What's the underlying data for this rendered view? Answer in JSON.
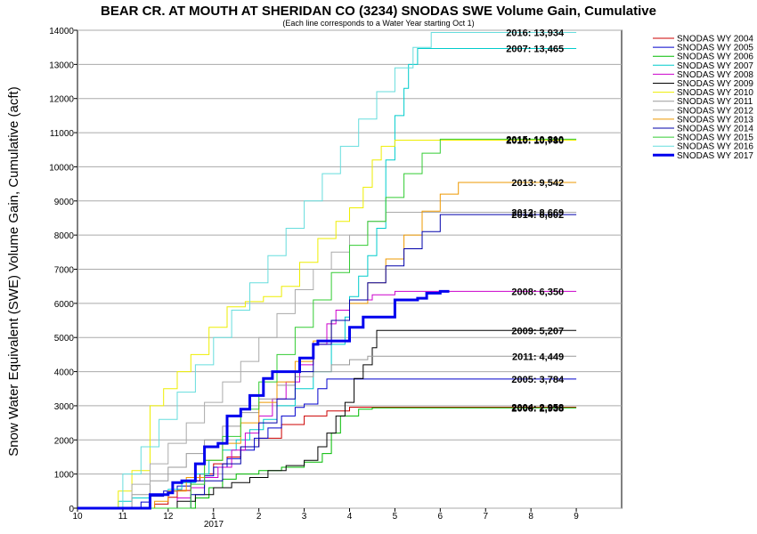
{
  "chart_data": {
    "type": "line",
    "title": "BEAR CR. AT MOUTH AT SHERIDAN CO (3234) SNODAS SWE Volume Gain, Cumulative",
    "subtitle": "(Each line corresponds to a Water Year starting Oct 1)",
    "ylabel": "Snow Water Equivalent (SWE) Volume Gain, Cumulative (acft)",
    "xlabel": "",
    "x_tick_labels": [
      "10",
      "11",
      "12",
      "1",
      "2",
      "3",
      "4",
      "5",
      "6",
      "7",
      "8",
      "9"
    ],
    "x_year_label": "2017",
    "xlim": [
      0,
      12
    ],
    "ylim": [
      0,
      14000
    ],
    "y_ticks": [
      0,
      1000,
      2000,
      3000,
      4000,
      5000,
      6000,
      7000,
      8000,
      9000,
      10000,
      11000,
      12000,
      13000,
      14000
    ],
    "grid": true,
    "legend_position": "right",
    "series": [
      {
        "name": "SNODAS WY 2004",
        "color": "#cc0000",
        "width": 1,
        "end_label": "2004: 2,958",
        "points": [
          [
            0,
            0
          ],
          [
            1.5,
            0
          ],
          [
            1.7,
            120
          ],
          [
            2.0,
            320
          ],
          [
            2.2,
            520
          ],
          [
            2.5,
            800
          ],
          [
            2.7,
            1000
          ],
          [
            3.0,
            1300
          ],
          [
            3.3,
            1500
          ],
          [
            3.6,
            1800
          ],
          [
            4.0,
            2050
          ],
          [
            4.5,
            2450
          ],
          [
            5.0,
            2700
          ],
          [
            5.5,
            2850
          ],
          [
            6.0,
            2958
          ],
          [
            11.0,
            2958
          ]
        ]
      },
      {
        "name": "SNODAS WY 2005",
        "color": "#0000cc",
        "width": 1,
        "end_label": "2005: 3,784",
        "points": [
          [
            0,
            0
          ],
          [
            1.3,
            0
          ],
          [
            1.4,
            180
          ],
          [
            1.6,
            350
          ],
          [
            1.9,
            500
          ],
          [
            2.2,
            650
          ],
          [
            2.5,
            800
          ],
          [
            2.8,
            950
          ],
          [
            3.0,
            1200
          ],
          [
            3.3,
            1450
          ],
          [
            3.6,
            1700
          ],
          [
            3.9,
            2050
          ],
          [
            4.2,
            2350
          ],
          [
            4.5,
            2700
          ],
          [
            4.8,
            2950
          ],
          [
            5.0,
            3050
          ],
          [
            5.3,
            3500
          ],
          [
            5.5,
            3784
          ],
          [
            11.0,
            3784
          ]
        ]
      },
      {
        "name": "SNODAS WY 2006",
        "color": "#00bb00",
        "width": 1,
        "end_label": "2006: 2,938",
        "points": [
          [
            0,
            0
          ],
          [
            2.3,
            0
          ],
          [
            2.6,
            300
          ],
          [
            2.9,
            600
          ],
          [
            3.2,
            850
          ],
          [
            3.5,
            1000
          ],
          [
            4.0,
            1100
          ],
          [
            4.5,
            1200
          ],
          [
            5.0,
            1350
          ],
          [
            5.4,
            1600
          ],
          [
            5.6,
            2200
          ],
          [
            5.8,
            2700
          ],
          [
            6.2,
            2900
          ],
          [
            6.5,
            2938
          ],
          [
            11.0,
            2938
          ]
        ]
      },
      {
        "name": "SNODAS WY 2007",
        "color": "#00cccc",
        "width": 1,
        "end_label": "2007: 13,465",
        "points": [
          [
            0,
            0
          ],
          [
            0.8,
            0
          ],
          [
            0.9,
            200
          ],
          [
            1.2,
            300
          ],
          [
            1.6,
            400
          ],
          [
            2.0,
            550
          ],
          [
            2.3,
            750
          ],
          [
            2.6,
            1000
          ],
          [
            2.9,
            1400
          ],
          [
            3.2,
            1700
          ],
          [
            3.5,
            2000
          ],
          [
            3.8,
            2300
          ],
          [
            4.1,
            2600
          ],
          [
            4.4,
            3000
          ],
          [
            4.8,
            3500
          ],
          [
            5.2,
            4000
          ],
          [
            5.6,
            4800
          ],
          [
            5.9,
            5600
          ],
          [
            6.0,
            6200
          ],
          [
            6.2,
            6800
          ],
          [
            6.4,
            7400
          ],
          [
            6.6,
            8200
          ],
          [
            6.8,
            10200
          ],
          [
            7.0,
            11500
          ],
          [
            7.2,
            12300
          ],
          [
            7.3,
            13000
          ],
          [
            7.5,
            13465
          ],
          [
            11.0,
            13465
          ]
        ]
      },
      {
        "name": "SNODAS WY 2008",
        "color": "#cc00cc",
        "width": 1,
        "end_label": "2008: 6,350",
        "points": [
          [
            0,
            0
          ],
          [
            2.0,
            0
          ],
          [
            2.2,
            300
          ],
          [
            2.5,
            600
          ],
          [
            2.8,
            900
          ],
          [
            3.1,
            1200
          ],
          [
            3.4,
            1700
          ],
          [
            3.7,
            2200
          ],
          [
            4.0,
            2700
          ],
          [
            4.3,
            3200
          ],
          [
            4.6,
            3700
          ],
          [
            4.9,
            4200
          ],
          [
            5.2,
            4800
          ],
          [
            5.5,
            5400
          ],
          [
            5.7,
            5800
          ],
          [
            6.0,
            6100
          ],
          [
            6.5,
            6250
          ],
          [
            7.0,
            6350
          ],
          [
            11.0,
            6350
          ]
        ]
      },
      {
        "name": "SNODAS WY 2009",
        "color": "#000000",
        "width": 1,
        "end_label": "2009: 5,207",
        "points": [
          [
            0,
            0
          ],
          [
            1.8,
            0
          ],
          [
            2.2,
            200
          ],
          [
            2.6,
            400
          ],
          [
            3.0,
            600
          ],
          [
            3.4,
            750
          ],
          [
            3.8,
            900
          ],
          [
            4.2,
            1100
          ],
          [
            4.6,
            1250
          ],
          [
            5.0,
            1400
          ],
          [
            5.3,
            1800
          ],
          [
            5.5,
            2200
          ],
          [
            5.7,
            2700
          ],
          [
            5.9,
            3100
          ],
          [
            6.1,
            3800
          ],
          [
            6.3,
            4200
          ],
          [
            6.5,
            4700
          ],
          [
            6.6,
            5207
          ],
          [
            11.0,
            5207
          ]
        ]
      },
      {
        "name": "SNODAS WY 2010",
        "color": "#eeee00",
        "width": 1,
        "end_label": "2010: 10,780",
        "points": [
          [
            0,
            0
          ],
          [
            0.8,
            0
          ],
          [
            0.9,
            500
          ],
          [
            1.2,
            1100
          ],
          [
            1.6,
            3000
          ],
          [
            1.9,
            3500
          ],
          [
            2.2,
            4000
          ],
          [
            2.5,
            4500
          ],
          [
            2.9,
            5300
          ],
          [
            3.3,
            5900
          ],
          [
            3.7,
            6050
          ],
          [
            4.1,
            6200
          ],
          [
            4.5,
            6500
          ],
          [
            4.9,
            7200
          ],
          [
            5.3,
            7900
          ],
          [
            5.7,
            8400
          ],
          [
            6.0,
            8800
          ],
          [
            6.3,
            9400
          ],
          [
            6.5,
            10200
          ],
          [
            6.7,
            10600
          ],
          [
            7.0,
            10780
          ],
          [
            11.0,
            10780
          ]
        ]
      },
      {
        "name": "SNODAS WY 2011",
        "color": "#999999",
        "width": 1,
        "end_label": "2011: 4,449",
        "points": [
          [
            0,
            0
          ],
          [
            1.0,
            0
          ],
          [
            1.2,
            400
          ],
          [
            1.6,
            800
          ],
          [
            2.0,
            1200
          ],
          [
            2.4,
            1600
          ],
          [
            2.8,
            2000
          ],
          [
            3.2,
            2400
          ],
          [
            3.6,
            2800
          ],
          [
            4.0,
            3200
          ],
          [
            4.4,
            3600
          ],
          [
            4.8,
            3850
          ],
          [
            5.2,
            4000
          ],
          [
            5.6,
            4200
          ],
          [
            6.0,
            4350
          ],
          [
            6.4,
            4449
          ],
          [
            11.0,
            4449
          ]
        ]
      },
      {
        "name": "SNODAS WY 2012",
        "color": "#aaaaaa",
        "width": 1,
        "end_label": "2012: 8,669",
        "points": [
          [
            0,
            0
          ],
          [
            1.0,
            0
          ],
          [
            1.2,
            700
          ],
          [
            1.6,
            1300
          ],
          [
            2.0,
            1900
          ],
          [
            2.4,
            2500
          ],
          [
            2.8,
            3100
          ],
          [
            3.2,
            3700
          ],
          [
            3.6,
            4300
          ],
          [
            4.0,
            5000
          ],
          [
            4.4,
            5700
          ],
          [
            4.8,
            6400
          ],
          [
            5.2,
            7000
          ],
          [
            5.6,
            7500
          ],
          [
            6.0,
            8000
          ],
          [
            6.4,
            8400
          ],
          [
            6.8,
            8669
          ],
          [
            11.0,
            8669
          ]
        ]
      },
      {
        "name": "SNODAS WY 2013",
        "color": "#ee9900",
        "width": 1,
        "end_label": "2013: 9,542",
        "points": [
          [
            0,
            0
          ],
          [
            1.5,
            0
          ],
          [
            1.7,
            200
          ],
          [
            2.0,
            500
          ],
          [
            2.4,
            900
          ],
          [
            2.8,
            1400
          ],
          [
            3.2,
            1900
          ],
          [
            3.6,
            2500
          ],
          [
            4.0,
            3100
          ],
          [
            4.4,
            3700
          ],
          [
            4.8,
            4300
          ],
          [
            5.2,
            4900
          ],
          [
            5.6,
            5500
          ],
          [
            6.0,
            6000
          ],
          [
            6.4,
            6600
          ],
          [
            6.8,
            7300
          ],
          [
            7.2,
            8000
          ],
          [
            7.6,
            8700
          ],
          [
            8.0,
            9200
          ],
          [
            8.4,
            9542
          ],
          [
            11.0,
            9542
          ]
        ]
      },
      {
        "name": "SNODAS WY 2014",
        "color": "#0000aa",
        "width": 1,
        "end_label": "2014: 8,602",
        "points": [
          [
            0,
            0
          ],
          [
            2.2,
            0
          ],
          [
            2.5,
            400
          ],
          [
            2.8,
            800
          ],
          [
            3.2,
            1300
          ],
          [
            3.6,
            1800
          ],
          [
            4.0,
            2500
          ],
          [
            4.4,
            3200
          ],
          [
            4.8,
            4000
          ],
          [
            5.2,
            4800
          ],
          [
            5.6,
            5500
          ],
          [
            6.0,
            6100
          ],
          [
            6.4,
            6600
          ],
          [
            6.8,
            7100
          ],
          [
            7.2,
            7600
          ],
          [
            7.6,
            8100
          ],
          [
            8.0,
            8602
          ],
          [
            11.0,
            8602
          ]
        ]
      },
      {
        "name": "SNODAS WY 2015",
        "color": "#33cc33",
        "width": 1,
        "end_label": "2015: 10,810",
        "points": [
          [
            0,
            0
          ],
          [
            2.2,
            0
          ],
          [
            2.5,
            700
          ],
          [
            2.8,
            1400
          ],
          [
            3.2,
            2100
          ],
          [
            3.6,
            2900
          ],
          [
            4.0,
            3700
          ],
          [
            4.4,
            4500
          ],
          [
            4.8,
            5300
          ],
          [
            5.2,
            6100
          ],
          [
            5.6,
            6900
          ],
          [
            6.0,
            7700
          ],
          [
            6.4,
            8400
          ],
          [
            6.8,
            9100
          ],
          [
            7.2,
            9800
          ],
          [
            7.6,
            10400
          ],
          [
            8.0,
            10810
          ],
          [
            11.0,
            10810
          ]
        ]
      },
      {
        "name": "SNODAS WY 2016",
        "color": "#66dddd",
        "width": 1,
        "end_label": "2016: 13,934",
        "points": [
          [
            0,
            0
          ],
          [
            0.8,
            0
          ],
          [
            1.0,
            1000
          ],
          [
            1.4,
            1800
          ],
          [
            1.8,
            2600
          ],
          [
            2.2,
            3400
          ],
          [
            2.6,
            4200
          ],
          [
            3.0,
            5000
          ],
          [
            3.4,
            5800
          ],
          [
            3.8,
            6600
          ],
          [
            4.2,
            7400
          ],
          [
            4.6,
            8200
          ],
          [
            5.0,
            9000
          ],
          [
            5.4,
            9800
          ],
          [
            5.8,
            10600
          ],
          [
            6.2,
            11400
          ],
          [
            6.6,
            12200
          ],
          [
            7.0,
            12900
          ],
          [
            7.4,
            13500
          ],
          [
            7.8,
            13934
          ],
          [
            11.0,
            13934
          ]
        ]
      },
      {
        "name": "SNODAS WY 2017",
        "color": "#0000ee",
        "width": 3,
        "end_label": "",
        "points": [
          [
            0,
            0
          ],
          [
            1.5,
            0
          ],
          [
            1.6,
            400
          ],
          [
            2.0,
            450
          ],
          [
            2.1,
            750
          ],
          [
            2.3,
            800
          ],
          [
            2.6,
            1300
          ],
          [
            2.8,
            1800
          ],
          [
            3.1,
            1900
          ],
          [
            3.3,
            2700
          ],
          [
            3.6,
            2900
          ],
          [
            3.8,
            3300
          ],
          [
            4.1,
            3800
          ],
          [
            4.3,
            4000
          ],
          [
            4.8,
            4000
          ],
          [
            4.9,
            4400
          ],
          [
            5.2,
            4800
          ],
          [
            5.3,
            4900
          ],
          [
            5.8,
            4900
          ],
          [
            6.0,
            5300
          ],
          [
            6.3,
            5600
          ],
          [
            6.8,
            5600
          ],
          [
            7.0,
            6100
          ],
          [
            7.5,
            6150
          ],
          [
            7.7,
            6300
          ],
          [
            8.0,
            6350
          ],
          [
            8.2,
            6350
          ]
        ]
      }
    ]
  }
}
